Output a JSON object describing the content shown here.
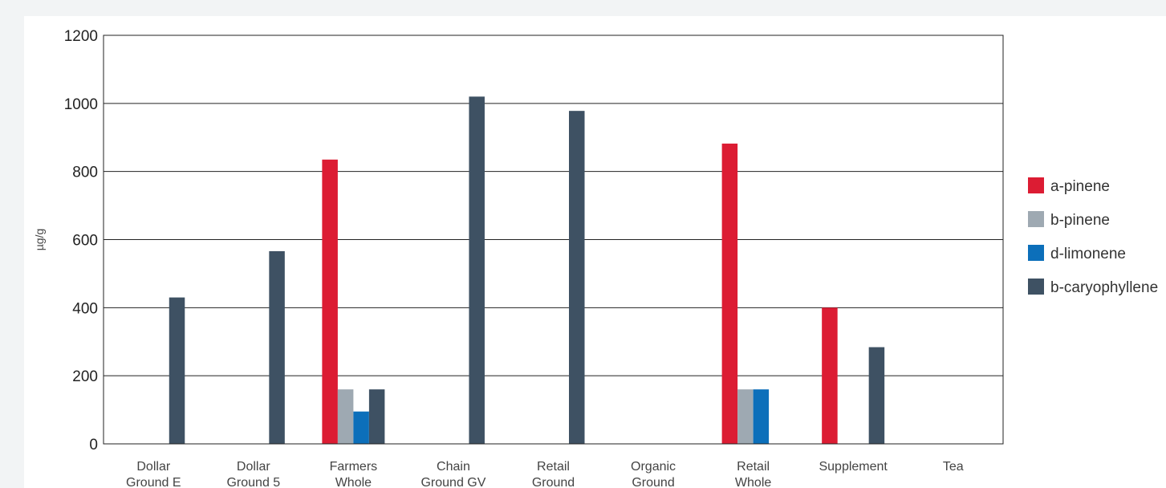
{
  "chart_data": {
    "type": "bar",
    "title": "",
    "xlabel": "",
    "ylabel": "µg/g",
    "ylim": [
      0,
      1200
    ],
    "yticks": [
      0,
      200,
      400,
      600,
      800,
      1000,
      1200
    ],
    "grid": true,
    "legend_position": "right",
    "categories": [
      [
        "Dollar",
        "Ground E"
      ],
      [
        "Dollar",
        "Ground 5"
      ],
      [
        "Farmers",
        "Whole"
      ],
      [
        "Chain",
        "Ground GV"
      ],
      [
        "Retail",
        "Ground"
      ],
      [
        "Organic",
        "Ground"
      ],
      [
        "Retail",
        "Whole"
      ],
      [
        "Supplement"
      ],
      [
        "Tea"
      ]
    ],
    "series": [
      {
        "name": "a-pinene",
        "color": "#dc1c33",
        "values": [
          0,
          0,
          835,
          0,
          0,
          0,
          882,
          400,
          0
        ]
      },
      {
        "name": "b-pinene",
        "color": "#9ea9b2",
        "values": [
          0,
          0,
          160,
          0,
          0,
          0,
          160,
          0,
          0
        ]
      },
      {
        "name": "d-limonene",
        "color": "#0c6fba",
        "values": [
          0,
          0,
          95,
          0,
          0,
          0,
          160,
          0,
          0
        ]
      },
      {
        "name": "b-caryophyllene",
        "color": "#3e5163",
        "values": [
          430,
          566,
          160,
          1020,
          978,
          0,
          0,
          284,
          0
        ]
      }
    ]
  }
}
